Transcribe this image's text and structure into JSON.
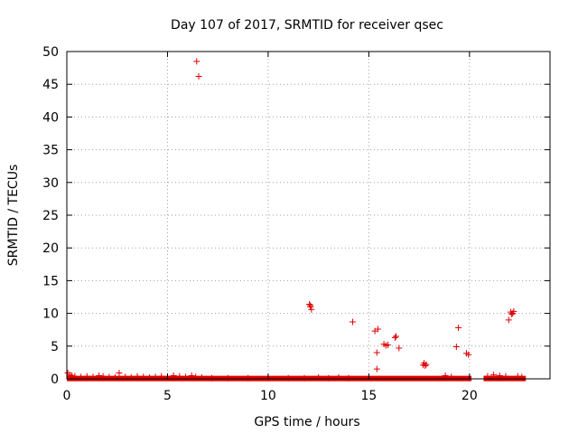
{
  "chart_data": {
    "type": "scatter",
    "title": "Day 107 of 2017, SRMTID for receiver qsec",
    "xlabel": "GPS time / hours",
    "ylabel": "SRMTID / TECUs",
    "xlim": [
      0,
      24
    ],
    "ylim": [
      0,
      50
    ],
    "xticks": [
      0,
      5,
      10,
      15,
      20
    ],
    "yticks": [
      0,
      5,
      10,
      15,
      20,
      25,
      30,
      35,
      40,
      45,
      50
    ],
    "grid": true,
    "marker": "+",
    "color": "#e00000",
    "baseline_segments": [
      [
        0.0,
        20.1
      ],
      [
        20.7,
        22.8
      ]
    ],
    "series": [
      {
        "name": "SRMTID",
        "points": [
          [
            0.05,
            0.9
          ],
          [
            0.15,
            0.6
          ],
          [
            0.25,
            0.5
          ],
          [
            0.4,
            0.4
          ],
          [
            0.7,
            0.3
          ],
          [
            1.0,
            0.4
          ],
          [
            1.3,
            0.3
          ],
          [
            1.6,
            0.5
          ],
          [
            1.8,
            0.4
          ],
          [
            2.1,
            0.3
          ],
          [
            2.4,
            0.2
          ],
          [
            2.6,
            0.9
          ],
          [
            2.9,
            0.3
          ],
          [
            3.2,
            0.2
          ],
          [
            3.5,
            0.4
          ],
          [
            3.8,
            0.3
          ],
          [
            4.1,
            0.2
          ],
          [
            4.4,
            0.3
          ],
          [
            4.7,
            0.4
          ],
          [
            5.0,
            0.3
          ],
          [
            5.3,
            0.5
          ],
          [
            5.6,
            0.4
          ],
          [
            5.9,
            0.3
          ],
          [
            6.2,
            0.5
          ],
          [
            6.4,
            0.3
          ],
          [
            6.45,
            48.5
          ],
          [
            6.55,
            46.2
          ],
          [
            6.7,
            0.2
          ],
          [
            7.2,
            0.1
          ],
          [
            8.0,
            0.1
          ],
          [
            9.0,
            0.1
          ],
          [
            10.0,
            0.1
          ],
          [
            11.0,
            0.1
          ],
          [
            11.8,
            0.1
          ],
          [
            12.05,
            11.4
          ],
          [
            12.1,
            11.0
          ],
          [
            12.15,
            10.6
          ],
          [
            12.1,
            11.2
          ],
          [
            12.5,
            0.2
          ],
          [
            13.0,
            0.1
          ],
          [
            13.5,
            0.2
          ],
          [
            14.0,
            0.1
          ],
          [
            14.2,
            8.7
          ],
          [
            15.3,
            7.3
          ],
          [
            15.45,
            7.6
          ],
          [
            15.4,
            4.0
          ],
          [
            15.4,
            1.5
          ],
          [
            15.75,
            5.3
          ],
          [
            15.85,
            5.1
          ],
          [
            15.95,
            5.2
          ],
          [
            16.3,
            6.3
          ],
          [
            16.35,
            6.5
          ],
          [
            16.5,
            4.7
          ],
          [
            17.7,
            2.1
          ],
          [
            17.75,
            2.4
          ],
          [
            17.85,
            2.2
          ],
          [
            17.8,
            2.0
          ],
          [
            18.8,
            0.5
          ],
          [
            19.1,
            0.3
          ],
          [
            19.35,
            4.9
          ],
          [
            19.45,
            7.8
          ],
          [
            19.85,
            3.9
          ],
          [
            19.95,
            3.7
          ],
          [
            20.9,
            0.4
          ],
          [
            21.2,
            0.6
          ],
          [
            21.5,
            0.5
          ],
          [
            21.8,
            0.4
          ],
          [
            21.95,
            9.0
          ],
          [
            22.05,
            10.2
          ],
          [
            22.1,
            9.9
          ],
          [
            22.15,
            10.0
          ],
          [
            22.2,
            10.3
          ],
          [
            22.4,
            0.4
          ],
          [
            22.6,
            0.3
          ]
        ]
      }
    ]
  }
}
